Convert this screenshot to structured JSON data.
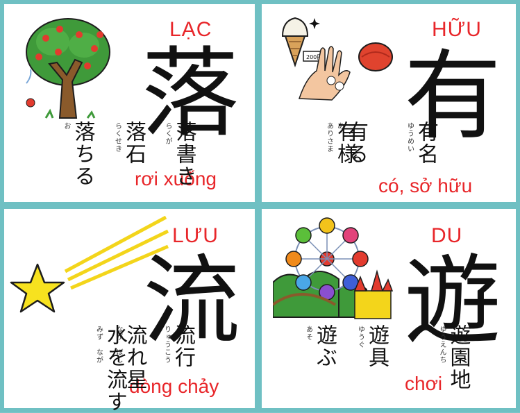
{
  "cards": [
    {
      "reading": "LẠC",
      "kanji": "落",
      "meaning": "rơi xuống",
      "words": [
        {
          "word": "落書き",
          "furigana": "らくが"
        },
        {
          "word": "落石",
          "furigana": "らくせき"
        },
        {
          "word": "落ちる",
          "furigana": "お"
        }
      ],
      "illustration_icon": "apple-tree-icon"
    },
    {
      "reading": "HỮU",
      "kanji": "有",
      "meaning": "có, sở hữu",
      "words": [
        {
          "word": "有名",
          "furigana": "ゆうめい"
        },
        {
          "word": "有る",
          "furigana": "あ"
        },
        {
          "word": "有様",
          "furigana": "ありさま"
        }
      ],
      "price_tag": "200円",
      "illustration_icon": "ice-cream-purse-hand-icon"
    },
    {
      "reading": "LƯU",
      "kanji": "流",
      "meaning": "dòng chảy",
      "words": [
        {
          "word": "流行",
          "furigana": "りゅうこう"
        },
        {
          "word": "流れ星",
          "furigana": "なが　ぼし"
        },
        {
          "word": "水を流す",
          "furigana": "みず　なが"
        }
      ],
      "illustration_icon": "shooting-star-icon"
    },
    {
      "reading": "DU",
      "kanji": "遊",
      "meaning": "chơi",
      "words": [
        {
          "word": "遊園地",
          "furigana": "ゆうえんち"
        },
        {
          "word": "遊具",
          "furigana": "ゆうぐ"
        },
        {
          "word": "遊ぶ",
          "furigana": "あそ"
        }
      ],
      "illustration_icon": "amusement-park-icon"
    }
  ],
  "colors": {
    "border": "#6fc0c3",
    "reading_text": "#e8262a",
    "kanji_text": "#111111"
  }
}
